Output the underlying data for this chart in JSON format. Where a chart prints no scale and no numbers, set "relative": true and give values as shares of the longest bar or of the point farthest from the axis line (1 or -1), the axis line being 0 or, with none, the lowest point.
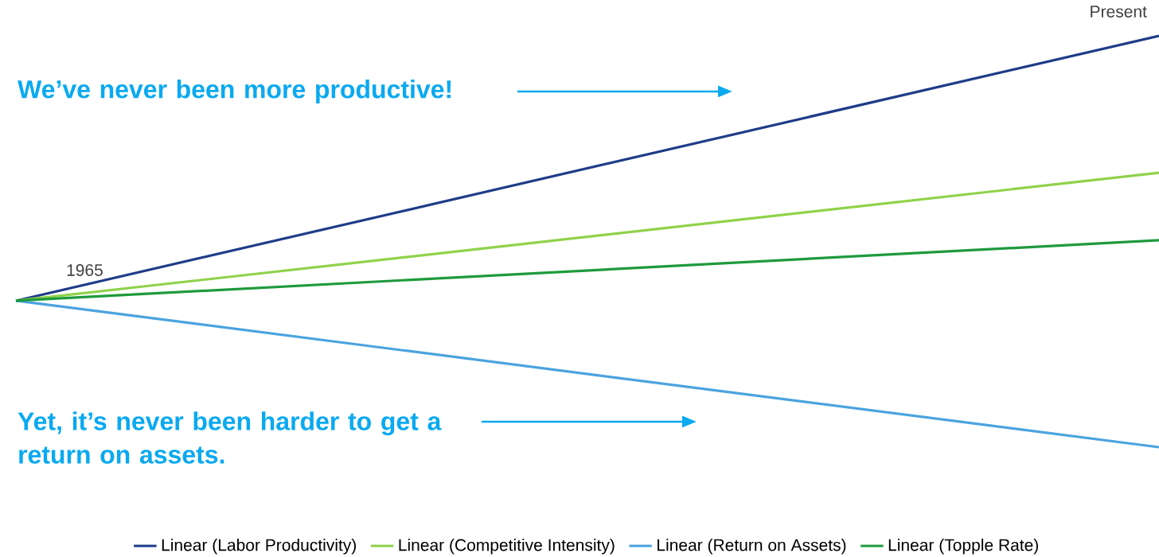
{
  "chart_data": {
    "type": "line",
    "relative": true,
    "categories": [
      "1965",
      "Present"
    ],
    "series": [
      {
        "name": "Linear (Labor Productivity)",
        "color": "#1f3c88",
        "values": [
          0.356,
          1
        ]
      },
      {
        "name": "Linear (Competitive Intensity)",
        "color": "#8fd24a",
        "values": [
          0.356,
          0.667
        ]
      },
      {
        "name": "Linear (Return on Assets)",
        "color": "#4aa3df",
        "values": [
          0.356,
          0
        ]
      },
      {
        "name": "Linear (Topple Rate)",
        "color": "#1e9a3c",
        "values": [
          0.356,
          0.503
        ]
      }
    ],
    "annotations": [
      "We’ve never been more productive!",
      "Yet, it’s never been harder to get a return on assets."
    ],
    "legend": "bottom",
    "marker": "none",
    "line_style": "solid"
  }
}
